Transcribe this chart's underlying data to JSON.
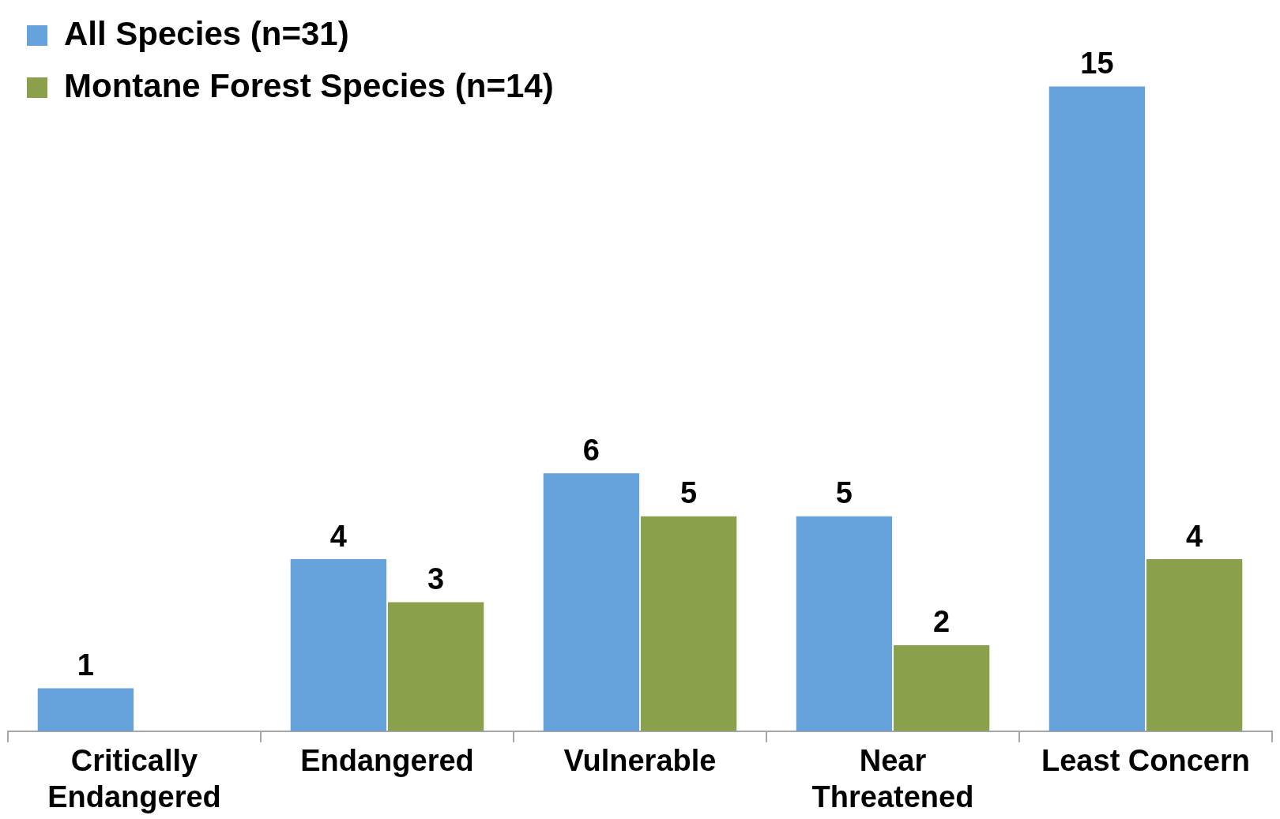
{
  "chart_data": {
    "type": "bar",
    "categories": [
      "Critically Endangered",
      "Endangered",
      "Vulnerable",
      "Near Threatened",
      "Least Concern"
    ],
    "series": [
      {
        "name": "All Species (n=31)",
        "color": "#65a2dc",
        "values": [
          1,
          4,
          6,
          5,
          15
        ]
      },
      {
        "name": "Montane Forest Species (n=14)",
        "color": "#8aa04b",
        "values": [
          null,
          3,
          5,
          2,
          4
        ]
      }
    ],
    "data_labels": true,
    "legend": "top left",
    "grid": false,
    "tick_labels": "x"
  }
}
